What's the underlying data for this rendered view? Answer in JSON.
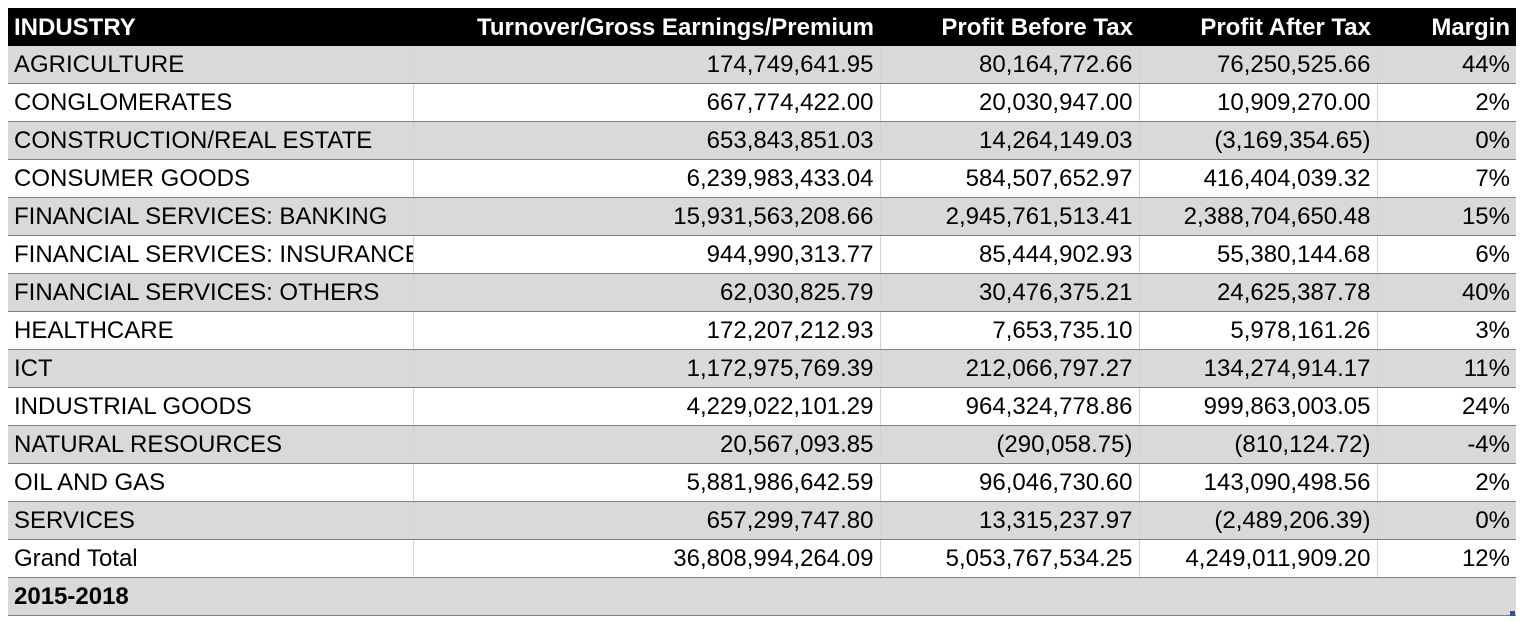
{
  "headers": {
    "industry": "INDUSTRY",
    "turnover": "Turnover/Gross Earnings/Premium",
    "pbt": "Profit Before Tax",
    "pat": "Profit After Tax",
    "margin": "Margin"
  },
  "rows": [
    {
      "industry": "AGRICULTURE",
      "turnover": "174,749,641.95",
      "pbt": "80,164,772.66",
      "pat": "76,250,525.66",
      "margin": "44%"
    },
    {
      "industry": "CONGLOMERATES",
      "turnover": "667,774,422.00",
      "pbt": "20,030,947.00",
      "pat": "10,909,270.00",
      "margin": "2%"
    },
    {
      "industry": "CONSTRUCTION/REAL ESTATE",
      "turnover": "653,843,851.03",
      "pbt": "14,264,149.03",
      "pat": "(3,169,354.65)",
      "margin": "0%"
    },
    {
      "industry": "CONSUMER GOODS",
      "turnover": "6,239,983,433.04",
      "pbt": "584,507,652.97",
      "pat": "416,404,039.32",
      "margin": "7%"
    },
    {
      "industry": "FINANCIAL SERVICES: BANKING",
      "turnover": "15,931,563,208.66",
      "pbt": "2,945,761,513.41",
      "pat": "2,388,704,650.48",
      "margin": "15%"
    },
    {
      "industry": "FINANCIAL SERVICES: INSURANCE",
      "turnover": "944,990,313.77",
      "pbt": "85,444,902.93",
      "pat": "55,380,144.68",
      "margin": "6%"
    },
    {
      "industry": "FINANCIAL SERVICES: OTHERS",
      "turnover": "62,030,825.79",
      "pbt": "30,476,375.21",
      "pat": "24,625,387.78",
      "margin": "40%"
    },
    {
      "industry": "HEALTHCARE",
      "turnover": "172,207,212.93",
      "pbt": "7,653,735.10",
      "pat": "5,978,161.26",
      "margin": "3%"
    },
    {
      "industry": "ICT",
      "turnover": "1,172,975,769.39",
      "pbt": "212,066,797.27",
      "pat": "134,274,914.17",
      "margin": "11%"
    },
    {
      "industry": "INDUSTRIAL GOODS",
      "turnover": "4,229,022,101.29",
      "pbt": "964,324,778.86",
      "pat": "999,863,003.05",
      "margin": "24%"
    },
    {
      "industry": "NATURAL RESOURCES",
      "turnover": "20,567,093.85",
      "pbt": "(290,058.75)",
      "pat": "(810,124.72)",
      "margin": "-4%"
    },
    {
      "industry": "OIL AND GAS",
      "turnover": "5,881,986,642.59",
      "pbt": "96,046,730.60",
      "pat": "143,090,498.56",
      "margin": "2%"
    },
    {
      "industry": "SERVICES",
      "turnover": "657,299,747.80",
      "pbt": "13,315,237.97",
      "pat": "(2,489,206.39)",
      "margin": "0%"
    }
  ],
  "total": {
    "industry": "Grand Total",
    "turnover": "36,808,994,264.09",
    "pbt": "5,053,767,534.25",
    "pat": "4,249,011,909.20",
    "margin": "12%"
  },
  "footer_label": "2015-2018",
  "colors": {
    "header_bg": "#000000",
    "header_text": "#ffffff",
    "shade": "#d9d9d9",
    "corner": "#2f5597"
  }
}
